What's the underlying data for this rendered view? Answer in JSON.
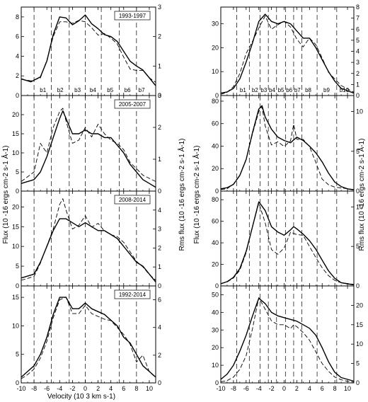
{
  "figure": {
    "xlabel": "Velocity (10 3 km s-1)",
    "left_ylabel": "Flux (10 -16 ergs cm-2 s-1 Å-1)",
    "left_ylabel_right": "Rms flux (10 -16 ergs cm-2 s-1 Å-1)",
    "right_ylabel": "Flux (10 -16 ergs cm-2 s-1 Å-1)",
    "right_ylabel_right": "Rms flux (10 -16 ergs cm-2 s-1 Å-1)"
  },
  "chart_data": [
    {
      "type": "line",
      "column": "left",
      "row": 0,
      "label": "1993-1997",
      "xlim": [
        -10,
        11
      ],
      "ylim_left": [
        0,
        9
      ],
      "ylim_right": [
        0,
        3
      ],
      "left_ticks": [
        0,
        2,
        4,
        6,
        8
      ],
      "right_ticks": [
        0,
        1,
        2,
        3
      ],
      "dashed_lines": [
        -8,
        -5.3,
        -2.5,
        0,
        2.5,
        5.3,
        8
      ],
      "bins": [
        {
          "x": -6.6,
          "label": "b1"
        },
        {
          "x": -3.9,
          "label": "b2"
        },
        {
          "x": -1.2,
          "label": "b3"
        },
        {
          "x": 1.2,
          "label": "b4"
        },
        {
          "x": 3.9,
          "label": "b5"
        },
        {
          "x": 6.6,
          "label": "b6"
        },
        {
          "x": 8.8,
          "label": "b7"
        }
      ],
      "series": [
        {
          "style": "solid",
          "x": [
            -10,
            -8.5,
            -7,
            -6,
            -5,
            -4,
            -3,
            -2,
            -1,
            0,
            1,
            2,
            3,
            4,
            5,
            6,
            7,
            8,
            9,
            10,
            11
          ],
          "y": [
            1.7,
            1.4,
            1.9,
            3.5,
            6.2,
            8.0,
            7.9,
            7.2,
            7.6,
            8.2,
            7.3,
            6.8,
            6.2,
            6.0,
            5.5,
            4.5,
            3.5,
            3.0,
            2.6,
            1.8,
            1.0
          ]
        },
        {
          "style": "dashed",
          "x": [
            -10,
            -8.5,
            -7,
            -6,
            -5,
            -4,
            -3,
            -2,
            -1,
            0,
            1,
            2,
            3,
            4,
            5,
            6,
            7,
            8,
            9,
            10,
            11
          ],
          "y": [
            0.55,
            0.5,
            0.6,
            1.2,
            2.0,
            2.5,
            2.5,
            2.45,
            2.55,
            2.5,
            2.3,
            2.05,
            2.1,
            1.95,
            1.75,
            1.3,
            0.9,
            0.85,
            0.85,
            0.6,
            0.45
          ]
        }
      ]
    },
    {
      "type": "line",
      "column": "left",
      "row": 1,
      "label": "2005-2007",
      "xlim": [
        -10,
        11
      ],
      "ylim_left": [
        0,
        25
      ],
      "ylim_right": [
        0,
        3
      ],
      "left_ticks": [
        0,
        5,
        10,
        15,
        20
      ],
      "right_ticks": [
        0,
        1,
        2,
        3
      ],
      "dashed_lines": [
        -8,
        -5.3,
        -2.5,
        0,
        2.5,
        5.3,
        8
      ],
      "bins": [],
      "series": [
        {
          "style": "solid",
          "x": [
            -10,
            -8,
            -7,
            -6,
            -5,
            -4,
            -3.5,
            -3,
            -2,
            -1,
            0,
            1,
            2,
            3,
            4,
            5,
            6,
            7,
            8,
            9,
            10,
            11
          ],
          "y": [
            2,
            3,
            5,
            9,
            14,
            19,
            21,
            19,
            15,
            15,
            16,
            15,
            15,
            14,
            14,
            12,
            10,
            7,
            5,
            3,
            2,
            1
          ]
        },
        {
          "style": "dashed",
          "x": [
            -10,
            -8,
            -7,
            -6,
            -5,
            -4,
            -3.5,
            -3,
            -2,
            -1,
            0,
            1,
            2,
            3,
            4,
            5,
            6,
            7,
            8,
            9,
            10,
            11
          ],
          "y": [
            0.3,
            0.6,
            1.5,
            1.2,
            2.0,
            2.5,
            2.6,
            2.2,
            1.5,
            1.6,
            2.0,
            1.7,
            2.1,
            1.8,
            1.6,
            1.5,
            1.3,
            0.9,
            0.7,
            0.5,
            0.4,
            0.3
          ]
        }
      ]
    },
    {
      "type": "line",
      "column": "left",
      "row": 2,
      "label": "2008-2014",
      "xlim": [
        -10,
        11
      ],
      "ylim_left": [
        0,
        24
      ],
      "ylim_right": [
        0,
        5
      ],
      "left_ticks": [
        0,
        5,
        10,
        15,
        20
      ],
      "right_ticks": [
        0,
        1,
        2,
        3,
        4
      ],
      "dashed_lines": [
        -8,
        -5.3,
        -2.5,
        0,
        2.5,
        5.3,
        8
      ],
      "bins": [],
      "series": [
        {
          "style": "solid",
          "x": [
            -10,
            -8,
            -7,
            -6,
            -5,
            -4,
            -3,
            -2,
            -1,
            0,
            1,
            2,
            3,
            4,
            5,
            6,
            7,
            8,
            9,
            10,
            11
          ],
          "y": [
            2,
            3,
            6,
            10,
            14,
            17,
            17,
            16,
            15,
            16,
            15,
            14,
            14,
            13,
            12,
            10,
            8,
            6,
            5,
            3,
            1
          ]
        },
        {
          "style": "dashed",
          "x": [
            -10,
            -8,
            -7,
            -6,
            -5,
            -4,
            -3.5,
            -3,
            -2,
            -1,
            0,
            1,
            2,
            3,
            4,
            5,
            6,
            7,
            8,
            9,
            10,
            11
          ],
          "y": [
            0.3,
            0.5,
            1.2,
            2.1,
            3.0,
            4.3,
            4.6,
            4.0,
            3.0,
            3.2,
            3.7,
            3.1,
            3.3,
            2.9,
            2.7,
            2.6,
            2.3,
            1.8,
            1.3,
            1.0,
            0.6,
            0.3
          ]
        }
      ]
    },
    {
      "type": "line",
      "column": "left",
      "row": 3,
      "label": "1992-2014",
      "xlim": [
        -10,
        11
      ],
      "ylim_left": [
        0,
        17
      ],
      "ylim_right": [
        0,
        7
      ],
      "left_ticks": [
        0,
        5,
        10,
        15
      ],
      "right_ticks": [
        0,
        2,
        4,
        6
      ],
      "dashed_lines": [
        -8,
        -5.3,
        -2.5,
        0,
        2.5,
        5.3,
        8
      ],
      "bins": [],
      "series": [
        {
          "style": "solid",
          "x": [
            -10,
            -9,
            -8,
            -7,
            -6,
            -5,
            -4,
            -3,
            -2,
            -1,
            0,
            1,
            2,
            3,
            4,
            5,
            6,
            7,
            8,
            9,
            10,
            11
          ],
          "y": [
            1,
            2,
            3,
            5,
            8,
            12,
            15,
            15,
            13,
            13,
            14,
            13,
            12.5,
            12,
            11,
            10,
            8,
            7,
            5,
            3,
            2,
            1
          ]
        },
        {
          "style": "dashed",
          "x": [
            -10,
            -9,
            -8,
            -7,
            -6,
            -5,
            -4,
            -3,
            -2,
            -1,
            0,
            1,
            2,
            3,
            4,
            5,
            6,
            7,
            8,
            9,
            10,
            11
          ],
          "y": [
            0.3,
            0.6,
            1.0,
            1.8,
            3.0,
            4.7,
            6.0,
            6.2,
            5.0,
            5.0,
            5.6,
            5.0,
            4.8,
            4.6,
            4.5,
            4.0,
            3.5,
            2.8,
            1.5,
            2.0,
            0.8,
            0.4
          ]
        }
      ]
    },
    {
      "type": "line",
      "column": "right",
      "row": 0,
      "label": "",
      "xlim": [
        -10,
        11
      ],
      "ylim_left": [
        0,
        37
      ],
      "ylim_right": [
        0,
        8
      ],
      "left_ticks": [
        0,
        10,
        20,
        30
      ],
      "right_ticks": [
        0,
        1,
        2,
        3,
        4,
        5,
        6,
        7,
        8
      ],
      "dashed_lines": [
        -7.5,
        -5.5,
        -3.8,
        -2.5,
        -1.2,
        0.2,
        1.5,
        2.8,
        5.2,
        8.3
      ],
      "bins": [
        {
          "x": -6.5,
          "label": "b1"
        },
        {
          "x": -4.6,
          "label": "b2"
        },
        {
          "x": -3.2,
          "label": "b3"
        },
        {
          "x": -1.9,
          "label": "b4"
        },
        {
          "x": -0.5,
          "label": "b5"
        },
        {
          "x": 0.8,
          "label": "b6"
        },
        {
          "x": 2.1,
          "label": "b7"
        },
        {
          "x": 3.8,
          "label": "b8"
        },
        {
          "x": 6.7,
          "label": "b9"
        },
        {
          "x": 9.5,
          "label": "b10"
        }
      ],
      "series": [
        {
          "style": "solid",
          "x": [
            -10,
            -9,
            -8,
            -7,
            -6,
            -5,
            -4,
            -3,
            -2,
            -1,
            0,
            1,
            2,
            3,
            4,
            5,
            6,
            7,
            8,
            9,
            10,
            11
          ],
          "y": [
            1,
            1.5,
            3,
            7,
            14,
            22,
            31,
            34,
            31,
            30,
            31,
            30,
            27,
            24,
            24,
            20,
            15,
            10,
            6,
            3,
            2,
            1
          ]
        },
        {
          "style": "dashed",
          "x": [
            -10,
            -9,
            -8,
            -7,
            -6,
            -5,
            -4,
            -3,
            -2,
            -1,
            0,
            1,
            2,
            3,
            4,
            5,
            6,
            7,
            8,
            9,
            10,
            11
          ],
          "y": [
            0.1,
            0.3,
            0.8,
            2.0,
            3.8,
            4.9,
            6.1,
            7.2,
            6.0,
            6.4,
            6.7,
            6.2,
            5.1,
            4.4,
            5.2,
            4.6,
            3.4,
            2.1,
            1.5,
            0.9,
            0.6,
            0.3
          ]
        }
      ]
    },
    {
      "type": "line",
      "column": "right",
      "row": 1,
      "label": "",
      "xlim": [
        -10,
        11
      ],
      "ylim_left": [
        0,
        85
      ],
      "ylim_right": [
        0,
        12
      ],
      "left_ticks": [
        0,
        20,
        40,
        60,
        80
      ],
      "right_ticks": [
        0,
        5,
        10
      ],
      "dashed_lines": [
        -7.5,
        -5.5,
        -3.8,
        -2.5,
        -1.2,
        0.2,
        1.5,
        2.8,
        5.2,
        8.3
      ],
      "bins": [],
      "series": [
        {
          "style": "solid",
          "x": [
            -10,
            -9,
            -8,
            -7,
            -6,
            -5,
            -4,
            -3.5,
            -3,
            -2,
            -1,
            0,
            1,
            2,
            3,
            4,
            5,
            6,
            7,
            8,
            9,
            10,
            11
          ],
          "y": [
            2,
            3,
            6,
            14,
            28,
            52,
            73,
            76,
            66,
            55,
            48,
            45,
            43,
            48,
            45,
            40,
            34,
            26,
            16,
            8,
            4,
            2,
            1
          ]
        },
        {
          "style": "dashed",
          "x": [
            -10,
            -9,
            -8,
            -7,
            -6,
            -5,
            -4,
            -3.5,
            -3,
            -2,
            -1,
            0,
            1,
            1.5,
            2,
            3,
            4,
            5,
            6,
            7,
            8,
            9,
            10,
            11
          ],
          "y": [
            0.2,
            0.3,
            0.9,
            2.0,
            4.0,
            7.2,
            10.0,
            10.6,
            8.2,
            5.8,
            6.2,
            5.6,
            6.3,
            8.4,
            6.5,
            6.5,
            5.6,
            3.6,
            1.5,
            0.8,
            0.5,
            0.4,
            0.3,
            0.2
          ]
        }
      ]
    },
    {
      "type": "line",
      "column": "right",
      "row": 2,
      "label": "",
      "xlim": [
        -10,
        11
      ],
      "ylim_left": [
        0,
        88
      ],
      "ylim_right": [
        0,
        12
      ],
      "left_ticks": [
        0,
        20,
        40,
        60,
        80
      ],
      "right_ticks": [
        0,
        5,
        10
      ],
      "dashed_lines": [
        -7.5,
        -5.5,
        -3.8,
        -2.5,
        -1.2,
        0.2,
        1.5,
        2.8,
        5.2,
        8.3
      ],
      "bins": [],
      "series": [
        {
          "style": "solid",
          "x": [
            -10,
            -9,
            -8,
            -7,
            -6,
            -5,
            -4,
            -3,
            -2,
            -1,
            0,
            1,
            1.5,
            2,
            3,
            4,
            5,
            6,
            7,
            8,
            9,
            10,
            11
          ],
          "y": [
            2,
            4,
            8,
            16,
            32,
            55,
            78,
            70,
            55,
            50,
            47,
            52,
            55,
            53,
            48,
            42,
            34,
            24,
            14,
            7,
            3,
            2,
            1
          ]
        },
        {
          "style": "dashed",
          "x": [
            -10,
            -9,
            -8,
            -7,
            -6,
            -5,
            -4,
            -3,
            -2,
            -1,
            0,
            1,
            2,
            3,
            4,
            5,
            6,
            7,
            8,
            9,
            10,
            11
          ],
          "y": [
            0.3,
            0.5,
            1.0,
            2.0,
            4.2,
            7.5,
            10.5,
            8.0,
            4.6,
            4.0,
            4.8,
            6.8,
            6.5,
            6.4,
            5.0,
            3.6,
            2.3,
            1.3,
            0.7,
            0.4,
            0.3,
            0.2
          ]
        }
      ]
    },
    {
      "type": "line",
      "column": "right",
      "row": 3,
      "label": "",
      "xlim": [
        -10,
        11
      ],
      "ylim_left": [
        0,
        55
      ],
      "ylim_right": [
        0,
        25
      ],
      "left_ticks": [
        0,
        10,
        20,
        30,
        40,
        50
      ],
      "right_ticks": [
        0,
        5,
        10,
        15,
        20
      ],
      "dashed_lines": [
        -7.5,
        -5.5,
        -3.8,
        -2.5,
        -1.2,
        0.2,
        1.5,
        2.8,
        5.2,
        8.3
      ],
      "bins": [],
      "series": [
        {
          "style": "solid",
          "x": [
            -10,
            -9,
            -8,
            -7,
            -6,
            -5,
            -4,
            -3,
            -2,
            -1,
            0,
            1,
            2,
            3,
            4,
            5,
            6,
            7,
            8,
            9,
            10,
            11
          ],
          "y": [
            2,
            5,
            10,
            18,
            27,
            38,
            48,
            45,
            40,
            38,
            37,
            36,
            35,
            33,
            31,
            27,
            20,
            12,
            6,
            3,
            2,
            1
          ]
        },
        {
          "style": "dashed",
          "x": [
            -10,
            -9,
            -8,
            -7,
            -6,
            -5,
            -4,
            -3,
            -2,
            -1,
            0,
            1,
            1.5,
            2,
            3,
            4,
            5,
            6,
            7,
            8,
            9,
            10,
            11
          ],
          "y": [
            0.3,
            0.6,
            1.5,
            3.5,
            7.0,
            14.0,
            22.0,
            19.0,
            16.0,
            15.0,
            15.0,
            14.0,
            15.0,
            14.5,
            13.0,
            11.0,
            8.0,
            5.0,
            3.0,
            1.5,
            0.8,
            0.4,
            0.2
          ]
        }
      ]
    }
  ]
}
